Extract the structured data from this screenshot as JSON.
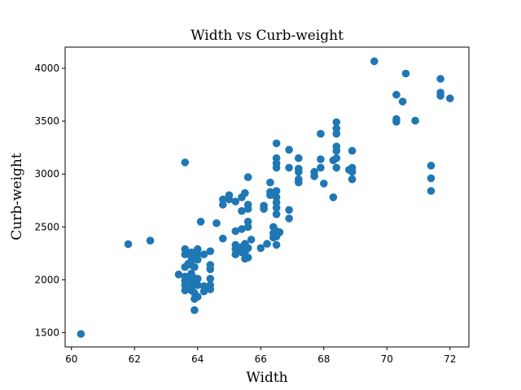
{
  "chart_data": {
    "type": "scatter",
    "title": "Width vs Curb-weight",
    "xlabel": "Width",
    "ylabel": "Curb-weight",
    "xlim": [
      59.8,
      72.6
    ],
    "ylim": [
      1365,
      4200
    ],
    "xticks": [
      60,
      62,
      64,
      66,
      68,
      70,
      72
    ],
    "yticks": [
      1500,
      2000,
      2500,
      3000,
      3500,
      4000
    ],
    "grid": false,
    "marker_color": "#1f77b4",
    "points": [
      [
        60.3,
        1488
      ],
      [
        61.8,
        2337
      ],
      [
        62.5,
        2370
      ],
      [
        63.4,
        2050
      ],
      [
        63.6,
        1900
      ],
      [
        63.6,
        1950
      ],
      [
        63.6,
        1990
      ],
      [
        63.6,
        2030
      ],
      [
        63.6,
        2120
      ],
      [
        63.6,
        2240
      ],
      [
        63.6,
        2290
      ],
      [
        63.6,
        3110
      ],
      [
        63.7,
        2010
      ],
      [
        63.7,
        2150
      ],
      [
        63.8,
        1900
      ],
      [
        63.8,
        1940
      ],
      [
        63.8,
        2000
      ],
      [
        63.8,
        2060
      ],
      [
        63.8,
        2140
      ],
      [
        63.8,
        2180
      ],
      [
        63.8,
        2220
      ],
      [
        63.8,
        2260
      ],
      [
        63.9,
        1713
      ],
      [
        63.9,
        1819
      ],
      [
        63.9,
        1876
      ],
      [
        63.9,
        1950
      ],
      [
        63.9,
        2015
      ],
      [
        63.9,
        2120
      ],
      [
        63.9,
        2200
      ],
      [
        64.0,
        1840
      ],
      [
        64.0,
        1950
      ],
      [
        64.0,
        2010
      ],
      [
        64.0,
        2190
      ],
      [
        64.0,
        2240
      ],
      [
        64.0,
        2290
      ],
      [
        64.1,
        2550
      ],
      [
        64.2,
        1890
      ],
      [
        64.2,
        1940
      ],
      [
        64.2,
        2240
      ],
      [
        64.4,
        1910
      ],
      [
        64.4,
        1950
      ],
      [
        64.4,
        2010
      ],
      [
        64.4,
        2100
      ],
      [
        64.4,
        2140
      ],
      [
        64.4,
        2270
      ],
      [
        64.6,
        2535
      ],
      [
        64.8,
        2390
      ],
      [
        64.8,
        2710
      ],
      [
        64.8,
        2760
      ],
      [
        65.0,
        2760
      ],
      [
        65.0,
        2800
      ],
      [
        65.2,
        2240
      ],
      [
        65.2,
        2290
      ],
      [
        65.2,
        2330
      ],
      [
        65.2,
        2460
      ],
      [
        65.2,
        2740
      ],
      [
        65.4,
        2260
      ],
      [
        65.4,
        2300
      ],
      [
        65.4,
        2310
      ],
      [
        65.4,
        2480
      ],
      [
        65.4,
        2650
      ],
      [
        65.4,
        2780
      ],
      [
        65.5,
        2200
      ],
      [
        65.5,
        2260
      ],
      [
        65.5,
        2300
      ],
      [
        65.5,
        2340
      ],
      [
        65.5,
        2820
      ],
      [
        65.6,
        2210
      ],
      [
        65.6,
        2300
      ],
      [
        65.6,
        2500
      ],
      [
        65.6,
        2550
      ],
      [
        65.6,
        2670
      ],
      [
        65.6,
        2710
      ],
      [
        65.6,
        2970
      ],
      [
        65.7,
        2380
      ],
      [
        66.0,
        2300
      ],
      [
        66.1,
        2670
      ],
      [
        66.1,
        2700
      ],
      [
        66.2,
        2340
      ],
      [
        66.3,
        2800
      ],
      [
        66.3,
        2830
      ],
      [
        66.3,
        2920
      ],
      [
        66.4,
        2400
      ],
      [
        66.4,
        2440
      ],
      [
        66.4,
        2500
      ],
      [
        66.5,
        2330
      ],
      [
        66.5,
        2410
      ],
      [
        66.5,
        2460
      ],
      [
        66.5,
        2620
      ],
      [
        66.5,
        2680
      ],
      [
        66.5,
        2730
      ],
      [
        66.5,
        2780
      ],
      [
        66.5,
        2840
      ],
      [
        66.5,
        3060
      ],
      [
        66.5,
        3100
      ],
      [
        66.5,
        3150
      ],
      [
        66.5,
        3290
      ],
      [
        66.6,
        2450
      ],
      [
        66.9,
        2580
      ],
      [
        66.9,
        2660
      ],
      [
        66.9,
        3060
      ],
      [
        66.9,
        3230
      ],
      [
        67.2,
        2920
      ],
      [
        67.2,
        2950
      ],
      [
        67.2,
        3020
      ],
      [
        67.2,
        3050
      ],
      [
        67.2,
        3150
      ],
      [
        67.7,
        2980
      ],
      [
        67.7,
        3020
      ],
      [
        67.9,
        3060
      ],
      [
        67.9,
        3140
      ],
      [
        67.9,
        3380
      ],
      [
        68.0,
        2910
      ],
      [
        68.3,
        2780
      ],
      [
        68.3,
        3130
      ],
      [
        68.4,
        3060
      ],
      [
        68.4,
        3150
      ],
      [
        68.4,
        3220
      ],
      [
        68.4,
        3260
      ],
      [
        68.4,
        3380
      ],
      [
        68.4,
        3430
      ],
      [
        68.4,
        3490
      ],
      [
        68.8,
        3040
      ],
      [
        68.9,
        2950
      ],
      [
        68.9,
        3020
      ],
      [
        68.9,
        3060
      ],
      [
        68.9,
        3220
      ],
      [
        69.6,
        4066
      ],
      [
        70.3,
        3495
      ],
      [
        70.3,
        3520
      ],
      [
        70.3,
        3750
      ],
      [
        70.5,
        3685
      ],
      [
        70.6,
        3950
      ],
      [
        70.9,
        3505
      ],
      [
        71.4,
        2840
      ],
      [
        71.4,
        2960
      ],
      [
        71.4,
        3080
      ],
      [
        71.7,
        3740
      ],
      [
        71.7,
        3770
      ],
      [
        71.7,
        3900
      ],
      [
        72.0,
        3715
      ]
    ]
  }
}
